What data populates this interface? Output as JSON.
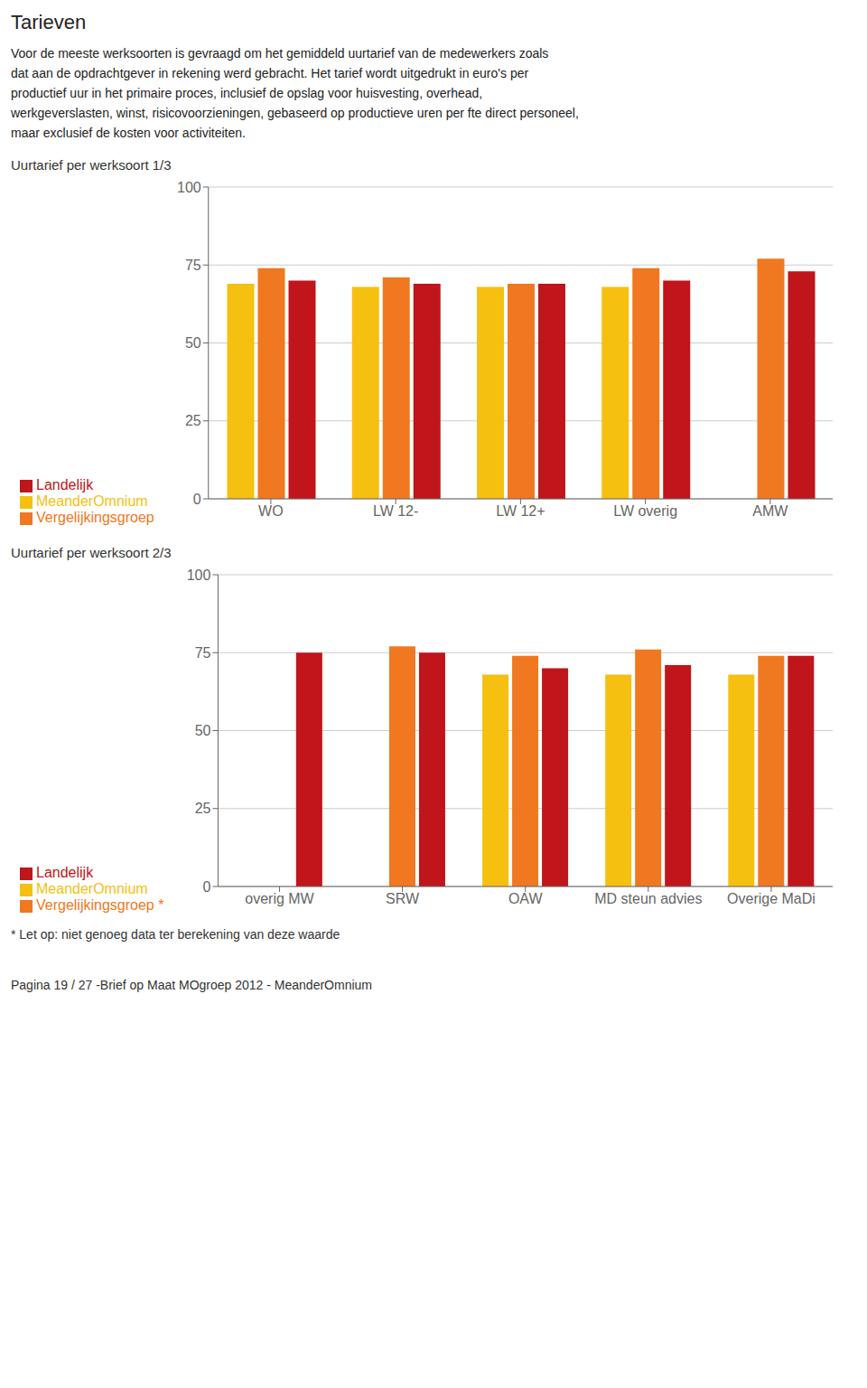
{
  "title": "Tarieven",
  "subtitle": [
    "Voor de meeste werksoorten is gevraagd om het gemiddeld uurtarief van de medewerkers zoals",
    "dat aan de opdrachtgever in rekening werd gebracht. Het tarief wordt uitgedrukt in euro's per",
    "productief uur in het primaire proces, inclusief de opslag voor huisvesting, overhead,",
    "werkgeverslasten, winst, risicovoorzieningen, gebaseerd op productieve uren per fte direct personeel,",
    "maar exclusief de kosten voor activiteiten."
  ],
  "annotations": [
    "Pagina 19 / 27 -Brief op Maat MOgroep 2012 - MeanderOmnium"
  ],
  "chart_data": [
    {
      "type": "bar",
      "title": "Uurtarief per werksoort 1/3",
      "categories": [
        "WO",
        "LW 12-",
        "LW 12+",
        "LW overig",
        "AMW"
      ],
      "series": [
        {
          "name": "MeanderOmnium",
          "color": "#F5C010",
          "values": [
            69,
            68,
            68,
            68,
            null
          ]
        },
        {
          "name": "Vergelijkingsgroep",
          "color": "#F07820",
          "values": [
            74,
            71,
            69,
            74,
            77
          ]
        },
        {
          "name": "Landelijk",
          "color": "#C0151A",
          "values": [
            70,
            69,
            69,
            70,
            73
          ]
        }
      ],
      "ylim": [
        0,
        100
      ],
      "yticks": [
        0,
        25,
        50,
        75,
        100
      ],
      "grid": true,
      "legend": "bottom"
    },
    {
      "type": "bar",
      "title": "Uurtarief per werksoort 2/3",
      "categories": [
        "overig MW",
        "SRW",
        "OAW",
        "MD steun advies",
        "Overige MaDi"
      ],
      "series": [
        {
          "name": "MeanderOmnium",
          "color": "#F5C010",
          "values": [
            null,
            null,
            68,
            68,
            68
          ]
        },
        {
          "name": "Vergelijkingsgroep *",
          "color": "#F07820",
          "values": [
            null,
            77,
            74,
            76,
            74
          ]
        },
        {
          "name": "Landelijk",
          "color": "#C0151A",
          "values": [
            75,
            75,
            70,
            71,
            74
          ]
        }
      ],
      "ylim": [
        0,
        100
      ],
      "yticks": [
        0,
        25,
        50,
        75,
        100
      ],
      "grid": true,
      "legend": "bottom",
      "annotations": [
        "* Let op: niet genoeg data ter berekening van deze waarde"
      ]
    }
  ]
}
